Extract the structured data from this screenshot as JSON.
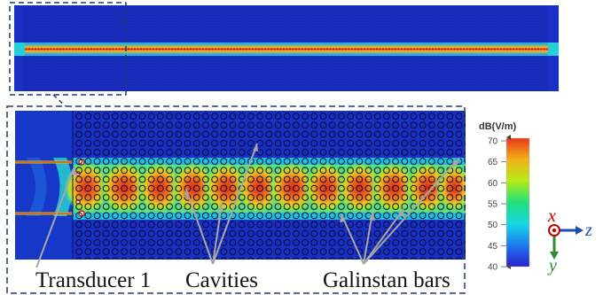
{
  "annotations": {
    "transducer": "Transducer 1",
    "cavities": "Cavities",
    "bars": "Galinstan bars"
  },
  "colorbar": {
    "title": "dB(V/m)",
    "ticks": [
      "70",
      "65",
      "60",
      "55",
      "50",
      "45",
      "40"
    ],
    "min": 40,
    "max": 70,
    "colors": [
      "#2b1fd0",
      "#1f7af0",
      "#18d7e6",
      "#22e07a",
      "#b6ea18",
      "#f2b318",
      "#e83a1c"
    ]
  },
  "axes": {
    "x": "x",
    "y": "y",
    "z": "z"
  }
}
